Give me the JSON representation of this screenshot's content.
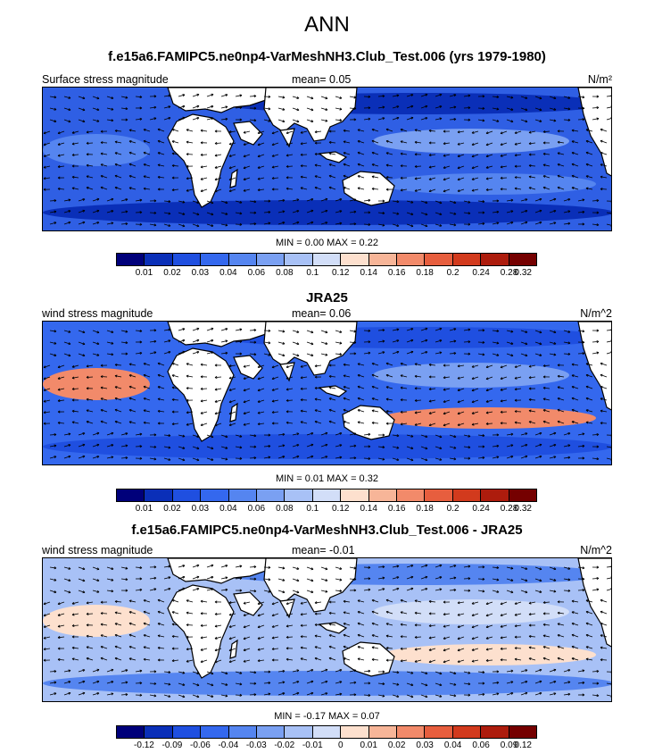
{
  "main_title": "ANN",
  "colors": {
    "seq": [
      "#00007a",
      "#0a2fb8",
      "#1f4fe0",
      "#3468ee",
      "#5585f0",
      "#7aa0f2",
      "#a8c1f6",
      "#d2def8",
      "#fde0ce",
      "#f7b598",
      "#f28a6a",
      "#e75e3e",
      "#d23a1d",
      "#ad1c0d",
      "#750000"
    ],
    "land": "#ffffff",
    "coast": "#000000"
  },
  "panels": [
    {
      "title": "f.e15a6.FAMIPC5.ne0np4-VarMeshNH3.Club_Test.006 (yrs 1979-1980)",
      "left_label": "Surface stress magnitude",
      "mean_label": "mean=   0.05",
      "units_label": "N/m²",
      "minmax": "MIN =   0.00 MAX =   0.22",
      "ticks": [
        "0.01",
        "0.02",
        "0.03",
        "0.04",
        "0.06",
        "0.08",
        "0.1",
        "0.12",
        "0.14",
        "0.16",
        "0.18",
        "0.2",
        "0.24",
        "0.28",
        "0.32"
      ],
      "ocean_color": "#2f5fe4",
      "band_color": "#0a2fb8",
      "calm_color": "#7aa0f2",
      "warm_color": "#5585f0"
    },
    {
      "title": "JRA25",
      "left_label": "wind stress magnitude",
      "mean_label": "mean=   0.06",
      "units_label": "N/m^2",
      "minmax": "MIN =   0.01 MAX =   0.32",
      "ticks": [
        "0.01",
        "0.02",
        "0.03",
        "0.04",
        "0.06",
        "0.08",
        "0.1",
        "0.12",
        "0.14",
        "0.16",
        "0.18",
        "0.2",
        "0.24",
        "0.28",
        "0.32"
      ],
      "ocean_color": "#3468ee",
      "band_color": "#1f4fe0",
      "calm_color": "#7aa0f2",
      "warm_color": "#f28a6a"
    },
    {
      "title": "f.e15a6.FAMIPC5.ne0np4-VarMeshNH3.Club_Test.006 - JRA25",
      "left_label": "wind stress magnitude",
      "mean_label": "mean=   -0.01",
      "units_label": "N/m^2",
      "minmax": "MIN =  -0.17 MAX =   0.07",
      "ticks": [
        "-0.12",
        "-0.09",
        "-0.06",
        "-0.04",
        "-0.03",
        "-0.02",
        "-0.01",
        "0",
        "0.01",
        "0.02",
        "0.03",
        "0.04",
        "0.06",
        "0.09",
        "0.12"
      ],
      "ocean_color": "#a8c1f6",
      "band_color": "#5585f0",
      "calm_color": "#d2def8",
      "warm_color": "#fde0ce"
    }
  ],
  "chart_data": [
    {
      "type": "heatmap",
      "title": "f.e15a6.FAMIPC5.ne0np4-VarMeshNH3.Club_Test.006 (yrs 1979-1980)",
      "variable": "Surface stress magnitude",
      "units": "N/m²",
      "mean": 0.05,
      "min": 0.0,
      "max": 0.22,
      "levels": [
        0.01,
        0.02,
        0.03,
        0.04,
        0.06,
        0.08,
        0.1,
        0.12,
        0.14,
        0.16,
        0.18,
        0.2,
        0.24,
        0.28,
        0.32
      ]
    },
    {
      "type": "heatmap",
      "title": "JRA25",
      "variable": "wind stress magnitude",
      "units": "N/m^2",
      "mean": 0.06,
      "min": 0.01,
      "max": 0.32,
      "levels": [
        0.01,
        0.02,
        0.03,
        0.04,
        0.06,
        0.08,
        0.1,
        0.12,
        0.14,
        0.16,
        0.18,
        0.2,
        0.24,
        0.28,
        0.32
      ]
    },
    {
      "type": "heatmap",
      "title": "f.e15a6.FAMIPC5.ne0np4-VarMeshNH3.Club_Test.006 - JRA25",
      "variable": "wind stress magnitude",
      "units": "N/m^2",
      "mean": -0.01,
      "min": -0.17,
      "max": 0.07,
      "levels": [
        -0.12,
        -0.09,
        -0.06,
        -0.04,
        -0.03,
        -0.02,
        -0.01,
        0,
        0.01,
        0.02,
        0.03,
        0.04,
        0.06,
        0.09,
        0.12
      ]
    }
  ]
}
